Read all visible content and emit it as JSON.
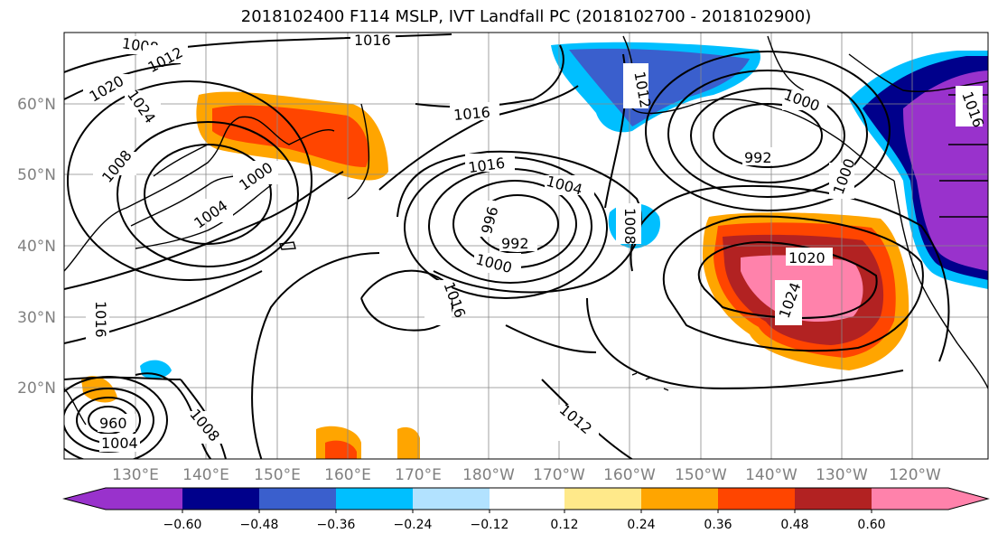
{
  "title": "2018102400 F114 MSLP, IVT Landfall PC (2018102700 - 2018102900)",
  "longitude_labels": [
    "130°E",
    "140°E",
    "150°E",
    "160°E",
    "170°E",
    "180°W",
    "170°W",
    "160°W",
    "150°W",
    "140°W",
    "130°W",
    "120°W"
  ],
  "latitude_labels": [
    "60°N",
    "50°N",
    "40°N",
    "30°N",
    "20°N"
  ],
  "isobar_labels": [
    "1008",
    "1012",
    "1016",
    "1020",
    "1024",
    "1008",
    "1000",
    "1004",
    "1016",
    "1016",
    "1012",
    "1004",
    "996",
    "992",
    "1000",
    "1016",
    "1008",
    "1012",
    "1000",
    "992",
    "1000",
    "1020",
    "1024",
    "1016",
    "1008",
    "1012",
    "1016",
    "960",
    "1004",
    "1008",
    "1012"
  ],
  "colorbar": {
    "tick_labels": [
      "−0.60",
      "−0.48",
      "−0.36",
      "−0.24",
      "−0.12",
      "0.12",
      "0.24",
      "0.36",
      "0.48",
      "0.60"
    ],
    "colors": [
      "#9932cc",
      "#00008b",
      "#3a5fcd",
      "#00bfff",
      "#b2e2ff",
      "#ffffff",
      "#ffe98a",
      "#ffa500",
      "#ff4500",
      "#b22222",
      "#ff82ab"
    ]
  }
}
